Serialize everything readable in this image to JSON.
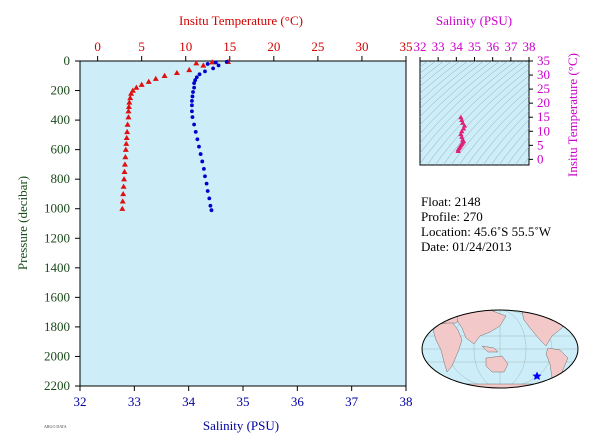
{
  "chart_data": [
    {
      "type": "scatter",
      "title": "",
      "top_axis": {
        "label": "Insitu Temperature (°C)",
        "range": [
          -2,
          35
        ],
        "ticks": [
          0,
          5,
          10,
          15,
          20,
          25,
          30,
          35
        ],
        "color": "#d40000"
      },
      "bottom_axis": {
        "label": "Salinity (PSU)",
        "range": [
          32,
          38
        ],
        "ticks": [
          32,
          33,
          34,
          35,
          36,
          37,
          38
        ],
        "color": "#0000a0"
      },
      "y_axis": {
        "label": "Pressure (decibar)",
        "range": [
          0,
          2200
        ],
        "inverted": true,
        "ticks": [
          0,
          200,
          400,
          600,
          800,
          1000,
          1200,
          1400,
          1600,
          1800,
          2000,
          2200
        ],
        "color": "#1a4a1a"
      },
      "plot_background": "#cdeef8",
      "series": [
        {
          "color": "#e01010",
          "marker": "triangle",
          "x_axis": "top",
          "points": [
            [
              14.8,
              5
            ],
            [
              13.0,
              8
            ],
            [
              11.2,
              15
            ],
            [
              12.0,
              30
            ],
            [
              10.4,
              60
            ],
            [
              9.0,
              80
            ],
            [
              7.6,
              100
            ],
            [
              6.6,
              120
            ],
            [
              5.8,
              140
            ],
            [
              5.0,
              160
            ],
            [
              4.4,
              180
            ],
            [
              4.0,
              200
            ],
            [
              3.8,
              220
            ],
            [
              3.7,
              250
            ],
            [
              3.6,
              280
            ],
            [
              3.55,
              310
            ],
            [
              3.5,
              340
            ],
            [
              3.5,
              380
            ],
            [
              3.4,
              430
            ],
            [
              3.35,
              480
            ],
            [
              3.3,
              520
            ],
            [
              3.25,
              560
            ],
            [
              3.2,
              600
            ],
            [
              3.15,
              650
            ],
            [
              3.1,
              700
            ],
            [
              3.05,
              750
            ],
            [
              3.0,
              800
            ],
            [
              2.95,
              850
            ],
            [
              2.9,
              900
            ],
            [
              2.85,
              950
            ],
            [
              2.8,
              1000
            ]
          ]
        },
        {
          "color": "#0000cc",
          "marker": "circle",
          "x_axis": "bottom",
          "points": [
            [
              34.7,
              5
            ],
            [
              34.5,
              10
            ],
            [
              34.35,
              20
            ],
            [
              34.55,
              30
            ],
            [
              34.45,
              50
            ],
            [
              34.3,
              70
            ],
            [
              34.2,
              90
            ],
            [
              34.15,
              110
            ],
            [
              34.12,
              130
            ],
            [
              34.1,
              150
            ],
            [
              34.1,
              180
            ],
            [
              34.08,
              210
            ],
            [
              34.07,
              240
            ],
            [
              34.06,
              270
            ],
            [
              34.06,
              300
            ],
            [
              34.06,
              340
            ],
            [
              34.07,
              380
            ],
            [
              34.1,
              430
            ],
            [
              34.13,
              480
            ],
            [
              34.16,
              530
            ],
            [
              34.19,
              580
            ],
            [
              34.22,
              630
            ],
            [
              34.25,
              680
            ],
            [
              34.28,
              730
            ],
            [
              34.3,
              780
            ],
            [
              34.33,
              830
            ],
            [
              34.35,
              880
            ],
            [
              34.38,
              930
            ],
            [
              34.4,
              980
            ],
            [
              34.42,
              1010
            ]
          ]
        }
      ]
    },
    {
      "type": "scatter",
      "title": "",
      "x_axis": {
        "label": "Salinity (PSU)",
        "range": [
          32,
          38
        ],
        "ticks": [
          32,
          33,
          34,
          35,
          36,
          37,
          38
        ],
        "color": "#cc00cc"
      },
      "y_axis": {
        "label": "Insitu Temperature (°C)",
        "range": [
          -2,
          35
        ],
        "ticks": [
          0,
          5,
          10,
          15,
          20,
          25,
          30,
          35
        ],
        "color": "#cc00cc"
      },
      "series": [
        {
          "color": "#e0207a",
          "marker": "triangle",
          "points": [
            [
              34.1,
              3.0
            ],
            [
              34.1,
              3.5
            ],
            [
              34.15,
              4.0
            ],
            [
              34.2,
              4.5
            ],
            [
              34.25,
              5.0
            ],
            [
              34.3,
              5.5
            ],
            [
              34.35,
              6.0
            ],
            [
              34.4,
              6.5
            ],
            [
              34.35,
              7.0
            ],
            [
              34.3,
              8.0
            ],
            [
              34.25,
              9.0
            ],
            [
              34.3,
              10.0
            ],
            [
              34.4,
              11.0
            ],
            [
              34.45,
              12.0
            ],
            [
              34.35,
              13.0
            ],
            [
              34.3,
              14.0
            ],
            [
              34.25,
              15.0
            ]
          ]
        }
      ]
    }
  ],
  "float_info": {
    "float_line": "Float:  2148",
    "profile_line": "Profile:  270",
    "location_line": "Location:  45.6˚S  55.5˚W",
    "date_line": "Date:  01/24/2013"
  },
  "map": {
    "ocean_color": "#cdeef8",
    "land_color": "#f2c8c8",
    "marker_color": "#0000ff"
  },
  "footer_text": "ARGO DATA"
}
